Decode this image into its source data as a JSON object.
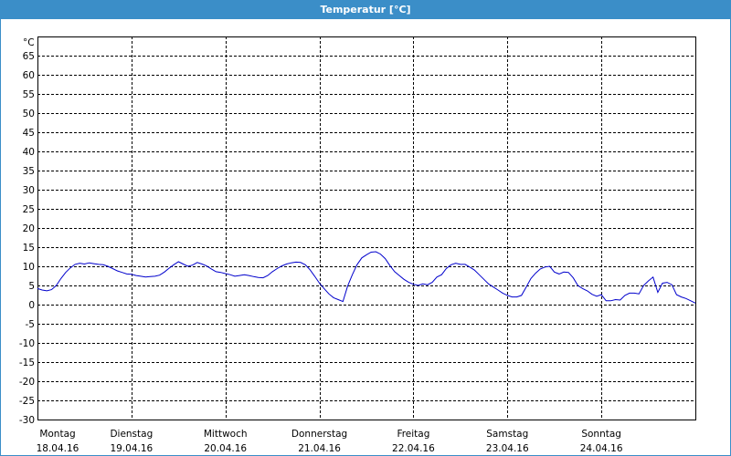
{
  "window": {
    "title": "Temperatur [°C]"
  },
  "chart_data": {
    "type": "line",
    "title": "Temperatur [°C]",
    "unit_label": "°C",
    "ylim": [
      -30,
      70
    ],
    "yticks": [
      65,
      60,
      55,
      50,
      45,
      40,
      35,
      30,
      25,
      20,
      15,
      10,
      5,
      0,
      -5,
      -10,
      -15,
      -20,
      -25,
      -30
    ],
    "xlim": [
      0,
      7
    ],
    "grid": true,
    "days": [
      {
        "weekday": "Montag",
        "date": "18.04.16",
        "x": 0
      },
      {
        "weekday": "Dienstag",
        "date": "19.04.16",
        "x": 1
      },
      {
        "weekday": "Mittwoch",
        "date": "20.04.16",
        "x": 2
      },
      {
        "weekday": "Donnerstag",
        "date": "21.04.16",
        "x": 3
      },
      {
        "weekday": "Freitag",
        "date": "22.04.16",
        "x": 4
      },
      {
        "weekday": "Samstag",
        "date": "23.04.16",
        "x": 5
      },
      {
        "weekday": "Sonntag",
        "date": "24.04.16",
        "x": 6
      }
    ],
    "series": [
      {
        "color": "#0000cc",
        "points": [
          [
            0.0,
            4.2
          ],
          [
            0.05,
            3.8
          ],
          [
            0.1,
            3.6
          ],
          [
            0.15,
            3.9
          ],
          [
            0.2,
            5.0
          ],
          [
            0.25,
            6.8
          ],
          [
            0.3,
            8.4
          ],
          [
            0.35,
            9.6
          ],
          [
            0.4,
            10.5
          ],
          [
            0.45,
            10.8
          ],
          [
            0.5,
            10.6
          ],
          [
            0.55,
            10.9
          ],
          [
            0.6,
            10.7
          ],
          [
            0.65,
            10.5
          ],
          [
            0.7,
            10.4
          ],
          [
            0.75,
            10.0
          ],
          [
            0.8,
            9.4
          ],
          [
            0.85,
            8.8
          ],
          [
            0.9,
            8.4
          ],
          [
            0.95,
            8.0
          ],
          [
            1.0,
            7.9
          ],
          [
            1.05,
            7.6
          ],
          [
            1.1,
            7.4
          ],
          [
            1.15,
            7.2
          ],
          [
            1.2,
            7.3
          ],
          [
            1.25,
            7.4
          ],
          [
            1.3,
            7.7
          ],
          [
            1.35,
            8.5
          ],
          [
            1.4,
            9.5
          ],
          [
            1.45,
            10.4
          ],
          [
            1.5,
            11.2
          ],
          [
            1.55,
            10.6
          ],
          [
            1.6,
            10.0
          ],
          [
            1.65,
            10.3
          ],
          [
            1.7,
            11.0
          ],
          [
            1.75,
            10.6
          ],
          [
            1.8,
            10.1
          ],
          [
            1.85,
            9.3
          ],
          [
            1.9,
            8.6
          ],
          [
            1.95,
            8.4
          ],
          [
            2.0,
            8.1
          ],
          [
            2.05,
            7.8
          ],
          [
            2.1,
            7.4
          ],
          [
            2.15,
            7.6
          ],
          [
            2.2,
            7.8
          ],
          [
            2.25,
            7.6
          ],
          [
            2.3,
            7.3
          ],
          [
            2.35,
            7.1
          ],
          [
            2.4,
            7.0
          ],
          [
            2.45,
            7.6
          ],
          [
            2.5,
            8.6
          ],
          [
            2.55,
            9.4
          ],
          [
            2.6,
            10.1
          ],
          [
            2.65,
            10.6
          ],
          [
            2.7,
            10.9
          ],
          [
            2.75,
            11.1
          ],
          [
            2.8,
            11.0
          ],
          [
            2.85,
            10.4
          ],
          [
            2.9,
            9.1
          ],
          [
            2.95,
            7.4
          ],
          [
            3.0,
            5.6
          ],
          [
            3.05,
            4.2
          ],
          [
            3.1,
            2.8
          ],
          [
            3.15,
            1.8
          ],
          [
            3.2,
            1.3
          ],
          [
            3.25,
            0.8
          ],
          [
            3.3,
            4.8
          ],
          [
            3.35,
            7.8
          ],
          [
            3.4,
            10.4
          ],
          [
            3.45,
            12.2
          ],
          [
            3.5,
            13.0
          ],
          [
            3.55,
            13.7
          ],
          [
            3.6,
            13.8
          ],
          [
            3.65,
            13.2
          ],
          [
            3.7,
            12.0
          ],
          [
            3.75,
            10.2
          ],
          [
            3.8,
            8.6
          ],
          [
            3.85,
            7.6
          ],
          [
            3.9,
            6.6
          ],
          [
            3.95,
            5.8
          ],
          [
            4.0,
            5.3
          ],
          [
            4.05,
            5.0
          ],
          [
            4.1,
            5.4
          ],
          [
            4.15,
            5.2
          ],
          [
            4.2,
            5.8
          ],
          [
            4.25,
            7.2
          ],
          [
            4.3,
            7.8
          ],
          [
            4.35,
            9.4
          ],
          [
            4.4,
            10.4
          ],
          [
            4.45,
            10.8
          ],
          [
            4.5,
            10.5
          ],
          [
            4.55,
            10.5
          ],
          [
            4.6,
            9.8
          ],
          [
            4.65,
            9.0
          ],
          [
            4.7,
            7.8
          ],
          [
            4.75,
            6.6
          ],
          [
            4.8,
            5.4
          ],
          [
            4.85,
            4.6
          ],
          [
            4.9,
            3.8
          ],
          [
            4.95,
            3.0
          ],
          [
            5.0,
            2.4
          ],
          [
            5.05,
            2.0
          ],
          [
            5.1,
            2.0
          ],
          [
            5.15,
            2.4
          ],
          [
            5.2,
            4.6
          ],
          [
            5.25,
            6.8
          ],
          [
            5.3,
            8.2
          ],
          [
            5.35,
            9.3
          ],
          [
            5.4,
            9.8
          ],
          [
            5.45,
            10.0
          ],
          [
            5.5,
            8.5
          ],
          [
            5.55,
            8.0
          ],
          [
            5.6,
            8.5
          ],
          [
            5.65,
            8.4
          ],
          [
            5.7,
            7.0
          ],
          [
            5.75,
            5.0
          ],
          [
            5.8,
            4.2
          ],
          [
            5.85,
            3.6
          ],
          [
            5.9,
            2.7
          ],
          [
            5.95,
            2.2
          ],
          [
            6.0,
            2.6
          ],
          [
            6.05,
            1.0
          ],
          [
            6.1,
            1.0
          ],
          [
            6.15,
            1.3
          ],
          [
            6.2,
            1.2
          ],
          [
            6.25,
            2.4
          ],
          [
            6.3,
            3.0
          ],
          [
            6.35,
            3.0
          ],
          [
            6.4,
            2.8
          ],
          [
            6.45,
            5.0
          ],
          [
            6.5,
            6.2
          ],
          [
            6.55,
            7.2
          ],
          [
            6.6,
            3.2
          ],
          [
            6.65,
            5.6
          ],
          [
            6.7,
            5.8
          ],
          [
            6.75,
            5.2
          ],
          [
            6.8,
            2.6
          ],
          [
            6.85,
            2.0
          ],
          [
            6.9,
            1.6
          ],
          [
            6.95,
            1.0
          ],
          [
            7.0,
            0.4
          ]
        ]
      }
    ]
  }
}
